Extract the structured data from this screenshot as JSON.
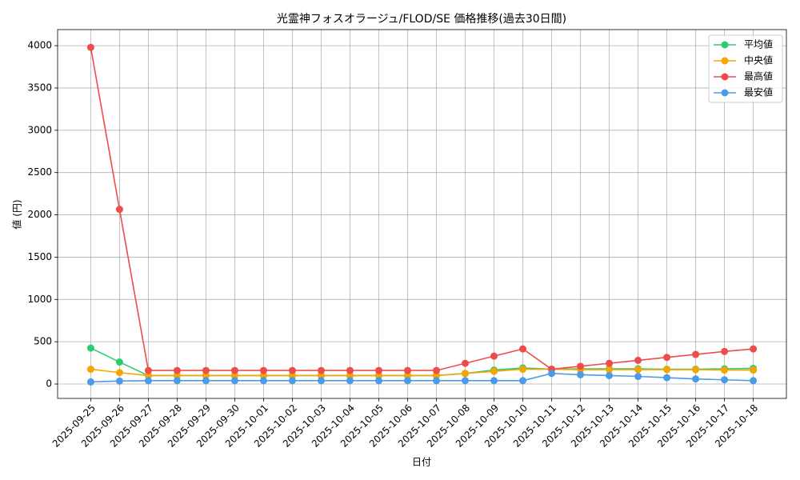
{
  "chart_data": {
    "type": "line",
    "title": "光霊神フォスオラージュ/FLOD/SE 価格推移(過去30日間)",
    "x_label": "日付",
    "y_label": "値 (円)",
    "categories": [
      "2025-09-25",
      "2025-09-26",
      "2025-09-27",
      "2025-09-28",
      "2025-09-29",
      "2025-09-30",
      "2025-10-01",
      "2025-10-02",
      "2025-10-03",
      "2025-10-04",
      "2025-10-05",
      "2025-10-06",
      "2025-10-07",
      "2025-10-08",
      "2025-10-09",
      "2025-10-10",
      "2025-10-11",
      "2025-10-12",
      "2025-10-13",
      "2025-10-14",
      "2025-10-15",
      "2025-10-16",
      "2025-10-17",
      "2025-10-18"
    ],
    "series": [
      {
        "name": "平均値",
        "color": "#2ecc71",
        "values": [
          425,
          260,
          100,
          100,
          100,
          100,
          100,
          100,
          100,
          100,
          100,
          100,
          100,
          125,
          165,
          190,
          175,
          180,
          180,
          180,
          175,
          175,
          180,
          185
        ]
      },
      {
        "name": "中央値",
        "color": "#f5a500",
        "values": [
          175,
          135,
          100,
          100,
          100,
          100,
          100,
          100,
          100,
          100,
          100,
          100,
          100,
          125,
          150,
          175,
          175,
          170,
          170,
          170,
          170,
          170,
          165,
          165
        ]
      },
      {
        "name": "最高値",
        "color": "#ef4c4c",
        "values": [
          3980,
          2065,
          160,
          160,
          160,
          160,
          160,
          160,
          160,
          160,
          160,
          160,
          160,
          245,
          330,
          415,
          175,
          210,
          245,
          280,
          315,
          350,
          385,
          415
        ]
      },
      {
        "name": "最安値",
        "color": "#4c9be8",
        "values": [
          25,
          35,
          40,
          40,
          40,
          40,
          40,
          40,
          40,
          40,
          40,
          40,
          40,
          40,
          40,
          40,
          125,
          110,
          100,
          90,
          75,
          60,
          50,
          40
        ]
      }
    ],
    "ylim": [
      -170,
      4190
    ],
    "yticks": [
      0,
      500,
      1000,
      1500,
      2000,
      2500,
      3000,
      3500,
      4000
    ],
    "grid": true,
    "legend": "upper right"
  }
}
